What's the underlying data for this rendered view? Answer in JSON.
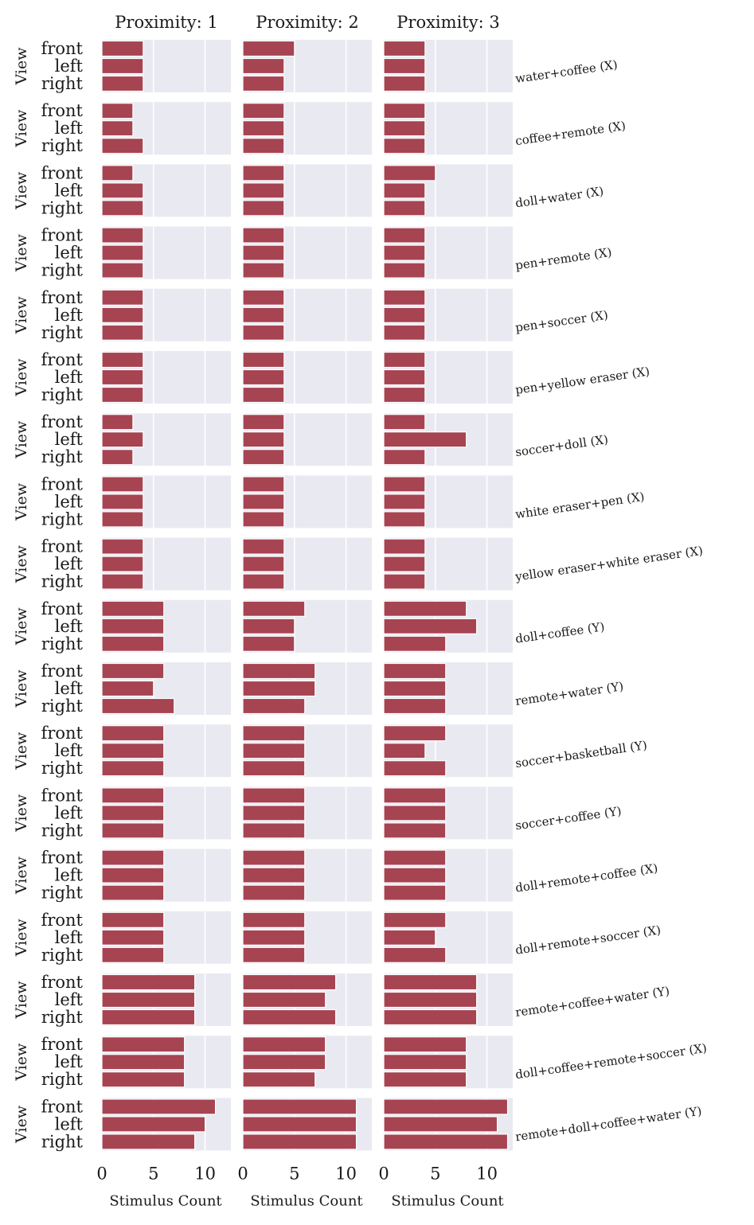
{
  "chart_data": {
    "type": "bar",
    "orientation": "horizontal",
    "layout": "facet-grid",
    "col_titles": [
      "Proximity: 1",
      "Proximity: 2",
      "Proximity: 3"
    ],
    "ylabel": "View",
    "xlabel": "Stimulus Count",
    "categories": [
      "front",
      "left",
      "right"
    ],
    "x_ticks": [
      0,
      5,
      10
    ],
    "xlim": [
      0,
      12.5
    ],
    "grid": true,
    "bar_color": "#a64452",
    "panel_background": "#e9e9f1",
    "rows": [
      {
        "label": "water+coffee (X)",
        "values": [
          [
            4,
            4,
            4
          ],
          [
            5,
            4,
            4
          ],
          [
            4,
            4,
            4
          ]
        ]
      },
      {
        "label": "coffee+remote (X)",
        "values": [
          [
            3,
            3,
            4
          ],
          [
            4,
            4,
            4
          ],
          [
            4,
            4,
            4
          ]
        ]
      },
      {
        "label": "doll+water (X)",
        "values": [
          [
            3,
            4,
            4
          ],
          [
            4,
            4,
            4
          ],
          [
            5,
            4,
            4
          ]
        ]
      },
      {
        "label": "pen+remote (X)",
        "values": [
          [
            4,
            4,
            4
          ],
          [
            4,
            4,
            4
          ],
          [
            4,
            4,
            4
          ]
        ]
      },
      {
        "label": "pen+soccer (X)",
        "values": [
          [
            4,
            4,
            4
          ],
          [
            4,
            4,
            4
          ],
          [
            4,
            4,
            4
          ]
        ]
      },
      {
        "label": "pen+yellow eraser (X)",
        "values": [
          [
            4,
            4,
            4
          ],
          [
            4,
            4,
            4
          ],
          [
            4,
            4,
            4
          ]
        ]
      },
      {
        "label": "soccer+doll (X)",
        "values": [
          [
            3,
            4,
            3
          ],
          [
            4,
            4,
            4
          ],
          [
            4,
            8,
            4
          ]
        ]
      },
      {
        "label": "white eraser+pen (X)",
        "values": [
          [
            4,
            4,
            4
          ],
          [
            4,
            4,
            4
          ],
          [
            4,
            4,
            4
          ]
        ]
      },
      {
        "label": "yellow eraser+white eraser (X)",
        "values": [
          [
            4,
            4,
            4
          ],
          [
            4,
            4,
            4
          ],
          [
            4,
            4,
            4
          ]
        ]
      },
      {
        "label": "doll+coffee (Y)",
        "values": [
          [
            6,
            6,
            6
          ],
          [
            6,
            5,
            5
          ],
          [
            8,
            9,
            6
          ]
        ]
      },
      {
        "label": "remote+water (Y)",
        "values": [
          [
            6,
            5,
            7
          ],
          [
            7,
            7,
            6
          ],
          [
            6,
            6,
            6
          ]
        ]
      },
      {
        "label": "soccer+basketball (Y)",
        "values": [
          [
            6,
            6,
            6
          ],
          [
            6,
            6,
            6
          ],
          [
            6,
            4,
            6
          ]
        ]
      },
      {
        "label": "soccer+coffee (Y)",
        "values": [
          [
            6,
            6,
            6
          ],
          [
            6,
            6,
            6
          ],
          [
            6,
            6,
            6
          ]
        ]
      },
      {
        "label": "doll+remote+coffee (X)",
        "values": [
          [
            6,
            6,
            6
          ],
          [
            6,
            6,
            6
          ],
          [
            6,
            6,
            6
          ]
        ]
      },
      {
        "label": "doll+remote+soccer (X)",
        "values": [
          [
            6,
            6,
            6
          ],
          [
            6,
            6,
            6
          ],
          [
            6,
            5,
            6
          ]
        ]
      },
      {
        "label": "remote+coffee+water (Y)",
        "values": [
          [
            9,
            9,
            9
          ],
          [
            9,
            8,
            9
          ],
          [
            9,
            9,
            9
          ]
        ]
      },
      {
        "label": "doll+coffee+remote+soccer (X)",
        "values": [
          [
            8,
            8,
            8
          ],
          [
            8,
            8,
            7
          ],
          [
            8,
            8,
            8
          ]
        ]
      },
      {
        "label": "remote+doll+coffee+water (Y)",
        "values": [
          [
            11,
            10,
            9
          ],
          [
            11,
            11,
            11
          ],
          [
            12,
            11,
            12
          ]
        ]
      }
    ]
  }
}
